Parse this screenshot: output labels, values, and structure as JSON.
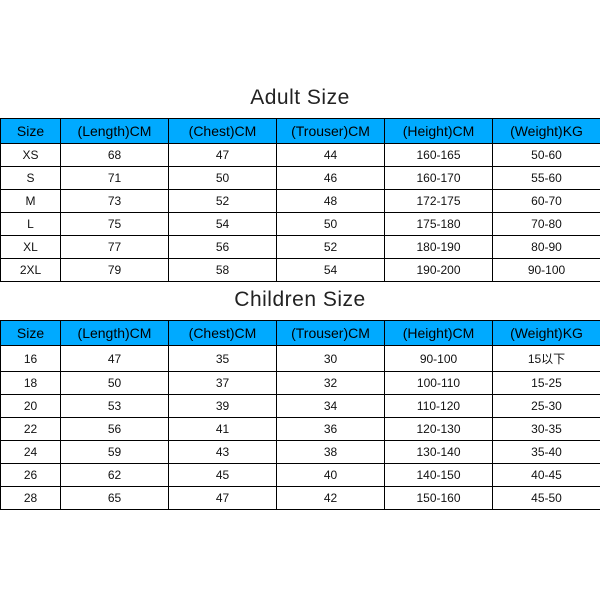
{
  "header_bg": "#00aaff",
  "header_text_color": "#000000",
  "border_color": "#000000",
  "title_fontsize": 21,
  "header_fontsize": 14,
  "cell_fontsize": 12,
  "adult": {
    "title": "Adult Size",
    "columns": [
      "Size",
      "(Length)CM",
      "(Chest)CM",
      "(Trouser)CM",
      "(Height)CM",
      "(Weight)KG"
    ],
    "rows": [
      [
        "XS",
        "68",
        "47",
        "44",
        "160-165",
        "50-60"
      ],
      [
        "S",
        "71",
        "50",
        "46",
        "160-170",
        "55-60"
      ],
      [
        "M",
        "73",
        "52",
        "48",
        "172-175",
        "60-70"
      ],
      [
        "L",
        "75",
        "54",
        "50",
        "175-180",
        "70-80"
      ],
      [
        "XL",
        "77",
        "56",
        "52",
        "180-190",
        "80-90"
      ],
      [
        "2XL",
        "79",
        "58",
        "54",
        "190-200",
        "90-100"
      ]
    ]
  },
  "children": {
    "title": "Children Size",
    "columns": [
      "Size",
      "(Length)CM",
      "(Chest)CM",
      "(Trouser)CM",
      "(Height)CM",
      "(Weight)KG"
    ],
    "rows": [
      [
        "16",
        "47",
        "35",
        "30",
        "90-100",
        "15以下"
      ],
      [
        "18",
        "50",
        "37",
        "32",
        "100-110",
        "15-25"
      ],
      [
        "20",
        "53",
        "39",
        "34",
        "110-120",
        "25-30"
      ],
      [
        "22",
        "56",
        "41",
        "36",
        "120-130",
        "30-35"
      ],
      [
        "24",
        "59",
        "43",
        "38",
        "130-140",
        "35-40"
      ],
      [
        "26",
        "62",
        "45",
        "40",
        "140-150",
        "40-45"
      ],
      [
        "28",
        "65",
        "47",
        "42",
        "150-160",
        "45-50"
      ]
    ]
  }
}
